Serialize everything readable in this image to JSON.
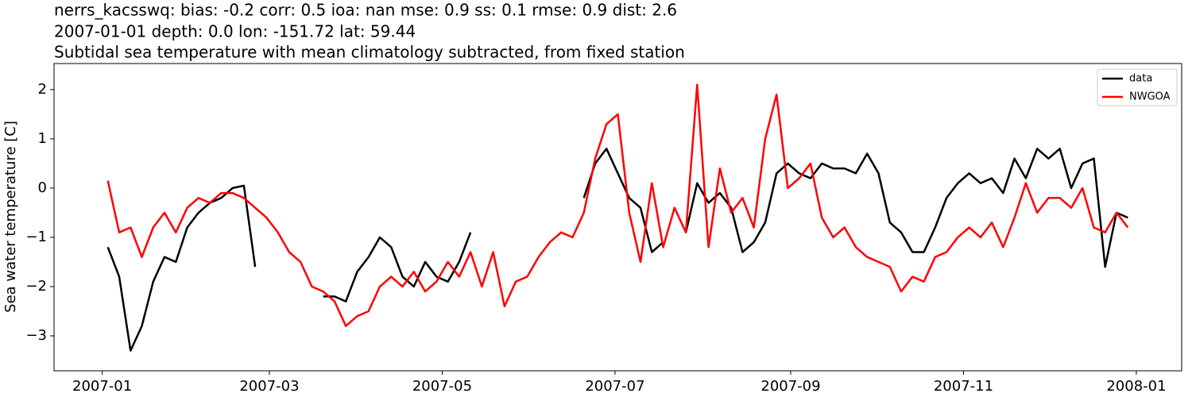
{
  "chart_data": {
    "type": "line",
    "title": [
      "nerrs_kacsswq: bias: -0.2  corr: 0.5  ioa: nan  mse: 0.9  ss: 0.1  rmse: 0.9  dist: 2.6",
      "2007-01-01 depth: 0.0 lon: -151.72 lat: 59.44",
      "Subtidal sea temperature with mean climatology subtracted, from fixed station"
    ],
    "ylabel": "Sea water temperature [C]",
    "x": [
      "2007-01-03",
      "2007-01-07",
      "2007-01-11",
      "2007-01-15",
      "2007-01-19",
      "2007-01-23",
      "2007-01-27",
      "2007-01-31",
      "2007-02-04",
      "2007-02-08",
      "2007-02-12",
      "2007-02-16",
      "2007-02-20",
      "2007-02-24",
      "2007-02-28",
      "2007-03-04",
      "2007-03-08",
      "2007-03-12",
      "2007-03-16",
      "2007-03-20",
      "2007-03-24",
      "2007-03-28",
      "2007-04-01",
      "2007-04-05",
      "2007-04-09",
      "2007-04-13",
      "2007-04-17",
      "2007-04-21",
      "2007-04-25",
      "2007-04-29",
      "2007-05-03",
      "2007-05-07",
      "2007-05-11",
      "2007-05-15",
      "2007-05-19",
      "2007-05-23",
      "2007-05-27",
      "2007-05-31",
      "2007-06-04",
      "2007-06-08",
      "2007-06-12",
      "2007-06-16",
      "2007-06-20",
      "2007-06-24",
      "2007-06-28",
      "2007-07-02",
      "2007-07-06",
      "2007-07-10",
      "2007-07-14",
      "2007-07-18",
      "2007-07-22",
      "2007-07-26",
      "2007-07-30",
      "2007-08-03",
      "2007-08-07",
      "2007-08-11",
      "2007-08-15",
      "2007-08-19",
      "2007-08-23",
      "2007-08-27",
      "2007-08-31",
      "2007-09-04",
      "2007-09-08",
      "2007-09-12",
      "2007-09-16",
      "2007-09-20",
      "2007-09-24",
      "2007-09-28",
      "2007-10-02",
      "2007-10-06",
      "2007-10-10",
      "2007-10-14",
      "2007-10-18",
      "2007-10-22",
      "2007-10-26",
      "2007-10-30",
      "2007-11-03",
      "2007-11-07",
      "2007-11-11",
      "2007-11-15",
      "2007-11-19",
      "2007-11-23",
      "2007-11-27",
      "2007-12-01",
      "2007-12-05",
      "2007-12-09",
      "2007-12-13",
      "2007-12-17",
      "2007-12-21",
      "2007-12-25",
      "2007-12-29"
    ],
    "series": [
      {
        "name": "data",
        "color": "#000000",
        "values": [
          -1.2,
          -1.8,
          -3.3,
          -2.8,
          -1.9,
          -1.4,
          -1.5,
          -0.8,
          -0.5,
          -0.3,
          -0.2,
          0.0,
          0.05,
          -1.6,
          null,
          null,
          null,
          null,
          null,
          -2.2,
          -2.2,
          -2.3,
          -1.7,
          -1.4,
          -1.0,
          -1.2,
          -1.8,
          -2.0,
          -1.5,
          -1.8,
          -1.9,
          -1.5,
          -0.9,
          null,
          null,
          null,
          null,
          null,
          null,
          null,
          null,
          null,
          -0.2,
          0.5,
          0.8,
          0.3,
          -0.2,
          -0.4,
          -1.3,
          -1.1,
          null,
          -0.9,
          0.1,
          -0.3,
          -0.1,
          -0.4,
          -1.3,
          -1.1,
          -0.7,
          0.3,
          0.5,
          0.3,
          0.2,
          0.5,
          0.4,
          0.4,
          0.3,
          0.7,
          0.3,
          -0.7,
          -0.9,
          -1.3,
          -1.3,
          -0.8,
          -0.2,
          0.1,
          0.3,
          0.1,
          0.2,
          -0.1,
          0.6,
          0.2,
          0.8,
          0.6,
          0.8,
          0.0,
          0.5,
          0.6,
          -1.6,
          -0.5,
          -0.6
        ]
      },
      {
        "name": "NWGOA",
        "color": "#ff0000",
        "values": [
          0.15,
          -0.9,
          -0.8,
          -1.4,
          -0.8,
          -0.5,
          -0.9,
          -0.4,
          -0.2,
          -0.3,
          -0.1,
          -0.1,
          -0.2,
          -0.4,
          -0.6,
          -0.9,
          -1.3,
          -1.5,
          -2.0,
          -2.1,
          -2.3,
          -2.8,
          -2.6,
          -2.5,
          -2.0,
          -1.8,
          -2.0,
          -1.7,
          -2.1,
          -1.9,
          -1.5,
          -1.8,
          -1.3,
          -2.0,
          -1.3,
          -2.4,
          -1.9,
          -1.8,
          -1.4,
          -1.1,
          -0.9,
          -1.0,
          -0.5,
          0.6,
          1.3,
          1.5,
          -0.5,
          -1.5,
          0.1,
          -1.2,
          -0.4,
          -0.9,
          2.1,
          -1.2,
          0.4,
          -0.5,
          -0.2,
          -0.8,
          1.0,
          1.9,
          0.0,
          0.2,
          0.5,
          -0.6,
          -1.0,
          -0.8,
          -1.2,
          -1.4,
          -1.5,
          -1.6,
          -2.1,
          -1.8,
          -1.9,
          -1.4,
          -1.3,
          -1.0,
          -0.8,
          -1.0,
          -0.7,
          -1.2,
          -0.6,
          0.1,
          -0.5,
          -0.2,
          -0.2,
          -0.4,
          0.0,
          -0.8,
          -0.9,
          -0.5,
          -0.8
        ]
      }
    ],
    "xlim": [
      "2006-12-15",
      "2008-01-17"
    ],
    "xticks": [
      {
        "value": "2007-01-01",
        "label": "2007-01"
      },
      {
        "value": "2007-03-01",
        "label": "2007-03"
      },
      {
        "value": "2007-05-01",
        "label": "2007-05"
      },
      {
        "value": "2007-07-01",
        "label": "2007-07"
      },
      {
        "value": "2007-09-01",
        "label": "2007-09"
      },
      {
        "value": "2007-11-01",
        "label": "2007-11"
      },
      {
        "value": "2008-01-01",
        "label": "2008-01"
      }
    ],
    "ylim": [
      -3.71,
      2.53
    ],
    "yticks": [
      {
        "value": -3,
        "label": "−3"
      },
      {
        "value": -2,
        "label": "−2"
      },
      {
        "value": -1,
        "label": "−1"
      },
      0,
      1,
      2
    ],
    "grid": false,
    "legend": "upper right"
  }
}
